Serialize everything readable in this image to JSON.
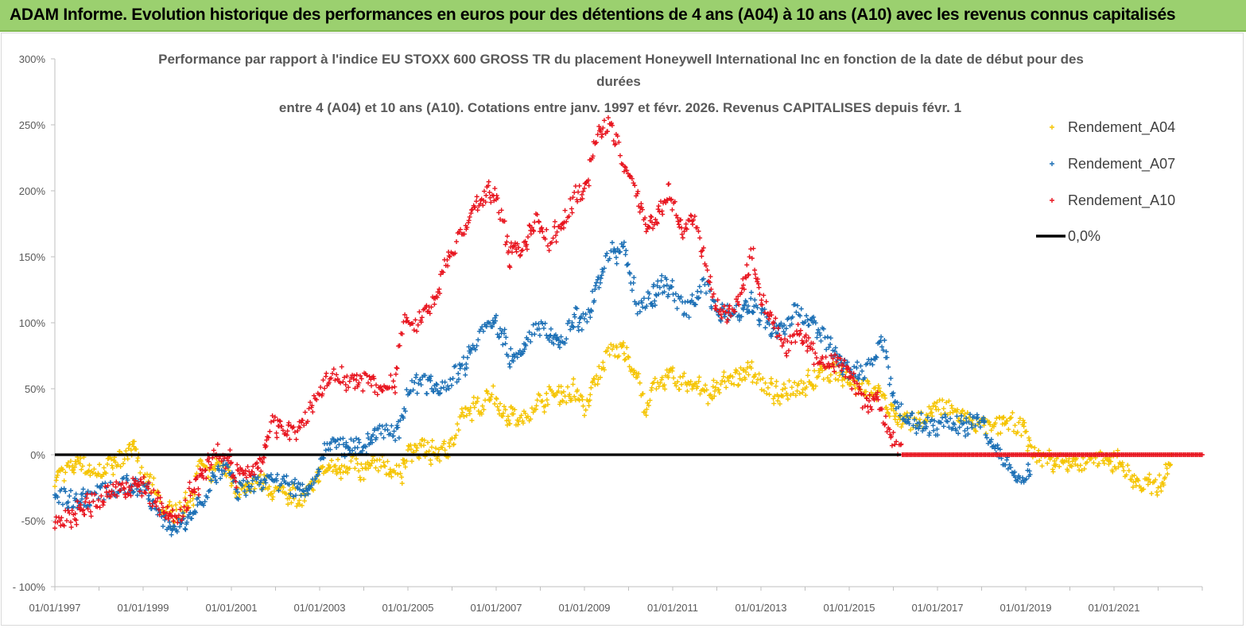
{
  "header": {
    "title": "ADAM Informe. Evolution historique des performances en euros pour des détentions de 4 ans (A04) à 10 ans (A10) avec les revenus connus capitalisés"
  },
  "chart_data": {
    "type": "scatter",
    "title": [
      "Performance par rapport à l'indice EU STOXX 600 GROSS TR  du placement Honeywell International Inc en fonction de la date de début pour des",
      "durées",
      "entre 4 (A04) et 10 ans (A10).  Cotations entre janv. 1997 et févr. 2026. Revenus CAPITALISES depuis févr. 1"
    ],
    "y_ticks": [
      "300%",
      "250%",
      "200%",
      "150%",
      "100%",
      "50%",
      "0%",
      "-50%",
      "- 100%"
    ],
    "ylim": [
      -100,
      300
    ],
    "x_ticks": [
      "01/01/1997",
      "01/01/1999",
      "01/01/2001",
      "01/01/2003",
      "01/01/2005",
      "01/01/2007",
      "01/01/2009",
      "01/01/2011",
      "01/01/2013",
      "01/01/2015",
      "01/01/2017",
      "01/01/2019",
      "01/01/2021"
    ],
    "xlim": [
      1997.0,
      2023.0
    ],
    "series": [
      {
        "name": "Rendement_A04",
        "color": "#f5c400",
        "points": [
          [
            1997.0,
            -17
          ],
          [
            1997.3,
            -12
          ],
          [
            1997.6,
            -5
          ],
          [
            1997.8,
            -15
          ],
          [
            1998.1,
            -10
          ],
          [
            1998.4,
            -5
          ],
          [
            1998.7,
            5
          ],
          [
            1998.9,
            -5
          ],
          [
            1999.0,
            -20
          ],
          [
            1999.3,
            -25
          ],
          [
            1999.5,
            -45
          ],
          [
            1999.8,
            -44
          ],
          [
            2000.1,
            -35
          ],
          [
            2000.3,
            -5
          ],
          [
            2000.5,
            -18
          ],
          [
            2000.8,
            -5
          ],
          [
            2001.0,
            -22
          ],
          [
            2001.2,
            -28
          ],
          [
            2001.5,
            -20
          ],
          [
            2001.8,
            -22
          ],
          [
            2002.0,
            -28
          ],
          [
            2002.3,
            -28
          ],
          [
            2002.6,
            -35
          ],
          [
            2002.8,
            -25
          ],
          [
            2003.0,
            -15
          ],
          [
            2003.3,
            -10
          ],
          [
            2003.5,
            -8
          ],
          [
            2003.8,
            -5
          ],
          [
            2004.0,
            -15
          ],
          [
            2004.3,
            -5
          ],
          [
            2004.6,
            -10
          ],
          [
            2004.8,
            -15
          ],
          [
            2005.0,
            0
          ],
          [
            2005.3,
            5
          ],
          [
            2005.6,
            0
          ],
          [
            2005.9,
            5
          ],
          [
            2006.0,
            10
          ],
          [
            2006.3,
            30
          ],
          [
            2006.6,
            35
          ],
          [
            2006.9,
            50
          ],
          [
            2007.0,
            40
          ],
          [
            2007.3,
            30
          ],
          [
            2007.6,
            25
          ],
          [
            2007.9,
            40
          ],
          [
            2008.2,
            45
          ],
          [
            2008.5,
            45
          ],
          [
            2008.8,
            48
          ],
          [
            2009.0,
            35
          ],
          [
            2009.3,
            60
          ],
          [
            2009.6,
            80
          ],
          [
            2009.9,
            78
          ],
          [
            2010.2,
            60
          ],
          [
            2010.4,
            30
          ],
          [
            2010.6,
            55
          ],
          [
            2010.9,
            60
          ],
          [
            2011.2,
            55
          ],
          [
            2011.5,
            55
          ],
          [
            2011.8,
            45
          ],
          [
            2012.0,
            50
          ],
          [
            2012.3,
            55
          ],
          [
            2012.6,
            62
          ],
          [
            2012.9,
            60
          ],
          [
            2013.1,
            50
          ],
          [
            2013.4,
            45
          ],
          [
            2013.7,
            50
          ],
          [
            2014.0,
            55
          ],
          [
            2014.3,
            58
          ],
          [
            2014.6,
            62
          ],
          [
            2014.9,
            60
          ],
          [
            2015.2,
            55
          ],
          [
            2015.5,
            50
          ],
          [
            2015.8,
            40
          ],
          [
            2016.0,
            30
          ],
          [
            2016.3,
            25
          ],
          [
            2016.6,
            25
          ],
          [
            2016.9,
            35
          ],
          [
            2017.2,
            35
          ],
          [
            2017.5,
            30
          ],
          [
            2017.8,
            25
          ],
          [
            2018.1,
            20
          ],
          [
            2018.4,
            22
          ],
          [
            2018.7,
            25
          ],
          [
            2018.9,
            20
          ],
          [
            2019.1,
            5
          ],
          [
            2019.4,
            -5
          ],
          [
            2019.7,
            -5
          ],
          [
            2020.0,
            -5
          ],
          [
            2020.3,
            -8
          ],
          [
            2020.6,
            -2
          ],
          [
            2020.9,
            -8
          ],
          [
            2021.1,
            -5
          ],
          [
            2021.4,
            -18
          ],
          [
            2021.7,
            -25
          ],
          [
            2022.0,
            -22
          ],
          [
            2022.2,
            -10
          ],
          [
            2022.3,
            0
          ]
        ]
      },
      {
        "name": "Rendement_A07",
        "color": "#1b6fb5",
        "points": [
          [
            1997.0,
            -30
          ],
          [
            1997.3,
            -33
          ],
          [
            1997.6,
            -35
          ],
          [
            1997.9,
            -30
          ],
          [
            1998.2,
            -27
          ],
          [
            1998.5,
            -25
          ],
          [
            1998.8,
            -22
          ],
          [
            1999.0,
            -25
          ],
          [
            1999.3,
            -40
          ],
          [
            1999.6,
            -55
          ],
          [
            1999.8,
            -55
          ],
          [
            2000.1,
            -45
          ],
          [
            2000.4,
            -30
          ],
          [
            2000.6,
            -18
          ],
          [
            2000.9,
            -10
          ],
          [
            2001.1,
            -28
          ],
          [
            2001.3,
            -25
          ],
          [
            2001.6,
            -20
          ],
          [
            2001.9,
            -22
          ],
          [
            2002.1,
            -20
          ],
          [
            2002.4,
            -25
          ],
          [
            2002.7,
            -30
          ],
          [
            2002.9,
            -15
          ],
          [
            2003.2,
            10
          ],
          [
            2003.5,
            5
          ],
          [
            2003.8,
            10
          ],
          [
            2004.0,
            5
          ],
          [
            2004.3,
            18
          ],
          [
            2004.6,
            20
          ],
          [
            2004.8,
            15
          ],
          [
            2005.0,
            50
          ],
          [
            2005.3,
            55
          ],
          [
            2005.6,
            50
          ],
          [
            2005.9,
            55
          ],
          [
            2006.2,
            65
          ],
          [
            2006.5,
            85
          ],
          [
            2006.8,
            100
          ],
          [
            2007.0,
            100
          ],
          [
            2007.3,
            75
          ],
          [
            2007.6,
            80
          ],
          [
            2007.9,
            100
          ],
          [
            2008.2,
            90
          ],
          [
            2008.5,
            85
          ],
          [
            2008.8,
            105
          ],
          [
            2009.0,
            100
          ],
          [
            2009.3,
            130
          ],
          [
            2009.6,
            155
          ],
          [
            2009.9,
            155
          ],
          [
            2010.2,
            110
          ],
          [
            2010.5,
            120
          ],
          [
            2010.8,
            130
          ],
          [
            2011.1,
            115
          ],
          [
            2011.4,
            110
          ],
          [
            2011.7,
            135
          ],
          [
            2011.9,
            115
          ],
          [
            2012.2,
            105
          ],
          [
            2012.5,
            110
          ],
          [
            2012.8,
            115
          ],
          [
            2013.1,
            100
          ],
          [
            2013.4,
            90
          ],
          [
            2013.6,
            100
          ],
          [
            2013.8,
            115
          ],
          [
            2014.0,
            100
          ],
          [
            2014.3,
            95
          ],
          [
            2014.6,
            80
          ],
          [
            2014.9,
            65
          ],
          [
            2015.2,
            60
          ],
          [
            2015.5,
            70
          ],
          [
            2015.8,
            85
          ],
          [
            2016.0,
            40
          ],
          [
            2016.3,
            28
          ],
          [
            2016.6,
            25
          ],
          [
            2016.9,
            20
          ],
          [
            2017.2,
            25
          ],
          [
            2017.5,
            22
          ],
          [
            2017.8,
            25
          ],
          [
            2018.0,
            20
          ],
          [
            2018.3,
            10
          ],
          [
            2018.6,
            -10
          ],
          [
            2018.9,
            -20
          ],
          [
            2019.1,
            -15
          ]
        ]
      },
      {
        "name": "Rendement_A10",
        "color": "#e8141e",
        "points": [
          [
            1997.0,
            -50
          ],
          [
            1997.3,
            -47
          ],
          [
            1997.6,
            -40
          ],
          [
            1997.9,
            -35
          ],
          [
            1998.2,
            -30
          ],
          [
            1998.5,
            -25
          ],
          [
            1998.8,
            -20
          ],
          [
            1999.0,
            -25
          ],
          [
            1999.3,
            -35
          ],
          [
            1999.6,
            -50
          ],
          [
            1999.9,
            -48
          ],
          [
            2000.1,
            -25
          ],
          [
            2000.4,
            -15
          ],
          [
            2000.6,
            5
          ],
          [
            2000.9,
            -5
          ],
          [
            2001.1,
            -15
          ],
          [
            2001.4,
            -10
          ],
          [
            2001.7,
            -5
          ],
          [
            2001.9,
            25
          ],
          [
            2002.2,
            20
          ],
          [
            2002.5,
            15
          ],
          [
            2002.7,
            30
          ],
          [
            2002.9,
            40
          ],
          [
            2003.2,
            60
          ],
          [
            2003.5,
            60
          ],
          [
            2003.8,
            55
          ],
          [
            2004.1,
            55
          ],
          [
            2004.4,
            50
          ],
          [
            2004.7,
            55
          ],
          [
            2004.9,
            105
          ],
          [
            2005.2,
            100
          ],
          [
            2005.5,
            110
          ],
          [
            2005.8,
            140
          ],
          [
            2006.1,
            160
          ],
          [
            2006.4,
            180
          ],
          [
            2006.7,
            195
          ],
          [
            2007.0,
            200
          ],
          [
            2007.3,
            150
          ],
          [
            2007.6,
            155
          ],
          [
            2007.9,
            180
          ],
          [
            2008.2,
            160
          ],
          [
            2008.5,
            175
          ],
          [
            2008.8,
            200
          ],
          [
            2009.0,
            200
          ],
          [
            2009.3,
            245
          ],
          [
            2009.6,
            250
          ],
          [
            2009.9,
            220
          ],
          [
            2010.2,
            195
          ],
          [
            2010.4,
            170
          ],
          [
            2010.7,
            185
          ],
          [
            2010.9,
            200
          ],
          [
            2011.2,
            170
          ],
          [
            2011.5,
            180
          ],
          [
            2011.7,
            150
          ],
          [
            2011.9,
            120
          ],
          [
            2012.2,
            105
          ],
          [
            2012.5,
            115
          ],
          [
            2012.8,
            155
          ],
          [
            2013.0,
            120
          ],
          [
            2013.3,
            100
          ],
          [
            2013.6,
            80
          ],
          [
            2013.9,
            95
          ],
          [
            2014.2,
            75
          ],
          [
            2014.5,
            70
          ],
          [
            2014.8,
            70
          ],
          [
            2015.0,
            60
          ],
          [
            2015.3,
            40
          ],
          [
            2015.6,
            40
          ],
          [
            2015.8,
            25
          ],
          [
            2016.0,
            10
          ],
          [
            2016.1,
            5
          ],
          [
            2016.2,
            0
          ],
          [
            2023.0,
            0
          ]
        ]
      }
    ],
    "reference_line": {
      "name": "0,0%",
      "value": 0,
      "color": "#000000"
    },
    "legend_position": "top-right"
  }
}
